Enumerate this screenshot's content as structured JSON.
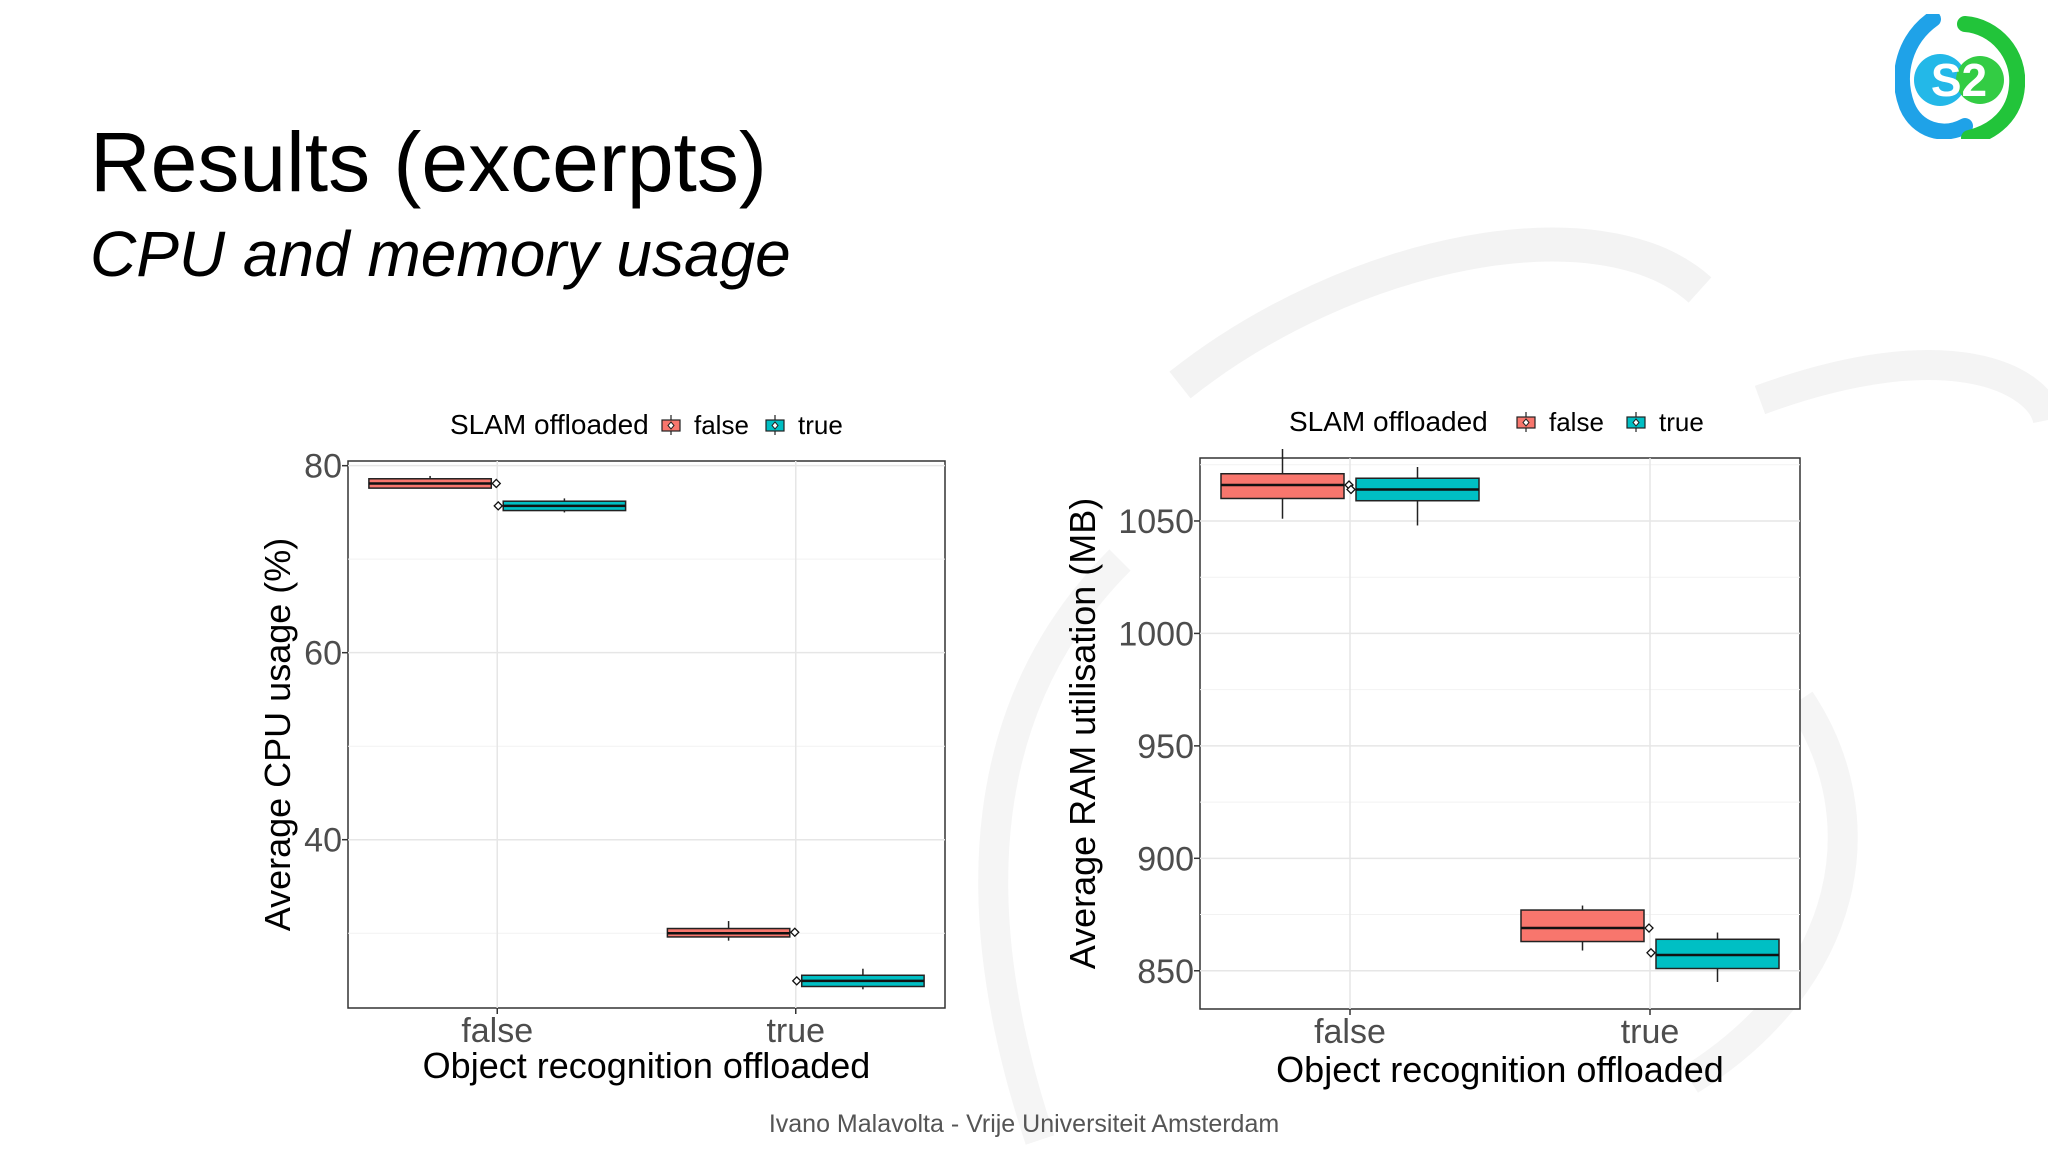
{
  "slide": {
    "title": "Results (excerpts)",
    "subtitle": "CPU and memory usage",
    "footer": "Ivano Malavolta - Vrije Universiteit Amsterdam",
    "logo_text": "S2"
  },
  "colors": {
    "false": "#F8766D",
    "true": "#00BFC4",
    "logo_blue": "#1FA2E8",
    "logo_green": "#22C43A"
  },
  "chart_data": [
    {
      "type": "boxplot",
      "legend": {
        "title": "SLAM offloaded",
        "entries": [
          "false",
          "true"
        ],
        "position": "top"
      },
      "xlabel": "Object recognition offloaded",
      "ylabel": "Average CPU usage (%)",
      "categories": [
        "false",
        "true"
      ],
      "ylim": [
        22,
        80.5
      ],
      "yticks": [
        40,
        60,
        80
      ],
      "grid": true,
      "series": [
        {
          "name": "false",
          "boxes": [
            {
              "category": "false",
              "whisker_low": 77.6,
              "q1": 77.6,
              "median": 78.1,
              "q3": 78.6,
              "whisker_high": 78.9,
              "mean": 78.1
            },
            {
              "category": "true",
              "whisker_low": 29.2,
              "q1": 29.6,
              "median": 30.0,
              "q3": 30.5,
              "whisker_high": 31.3,
              "mean": 30.1
            }
          ]
        },
        {
          "name": "true",
          "boxes": [
            {
              "category": "false",
              "whisker_low": 75.0,
              "q1": 75.2,
              "median": 75.7,
              "q3": 76.2,
              "whisker_high": 76.5,
              "mean": 75.7
            },
            {
              "category": "true",
              "whisker_low": 24.0,
              "q1": 24.3,
              "median": 24.9,
              "q3": 25.5,
              "whisker_high": 26.2,
              "mean": 24.9
            }
          ]
        }
      ]
    },
    {
      "type": "boxplot",
      "legend": {
        "title": "SLAM offloaded",
        "entries": [
          "false",
          "true"
        ],
        "position": "top"
      },
      "xlabel": "Object recognition offloaded",
      "ylabel": "Average RAM utilisation (MB)",
      "categories": [
        "false",
        "true"
      ],
      "ylim": [
        833,
        1078
      ],
      "yticks": [
        850,
        900,
        950,
        1000,
        1050
      ],
      "grid": true,
      "series": [
        {
          "name": "false",
          "boxes": [
            {
              "category": "false",
              "whisker_low": 1051,
              "q1": 1060,
              "median": 1066,
              "q3": 1071,
              "whisker_high": 1082,
              "mean": 1066
            },
            {
              "category": "true",
              "whisker_low": 859,
              "q1": 863,
              "median": 869,
              "q3": 877,
              "whisker_high": 879,
              "mean": 869
            }
          ]
        },
        {
          "name": "true",
          "boxes": [
            {
              "category": "false",
              "whisker_low": 1048,
              "q1": 1059,
              "median": 1064,
              "q3": 1069,
              "whisker_high": 1074,
              "mean": 1064
            },
            {
              "category": "true",
              "whisker_low": 845,
              "q1": 851,
              "median": 857,
              "q3": 864,
              "whisker_high": 867,
              "mean": 858
            }
          ]
        }
      ]
    }
  ]
}
